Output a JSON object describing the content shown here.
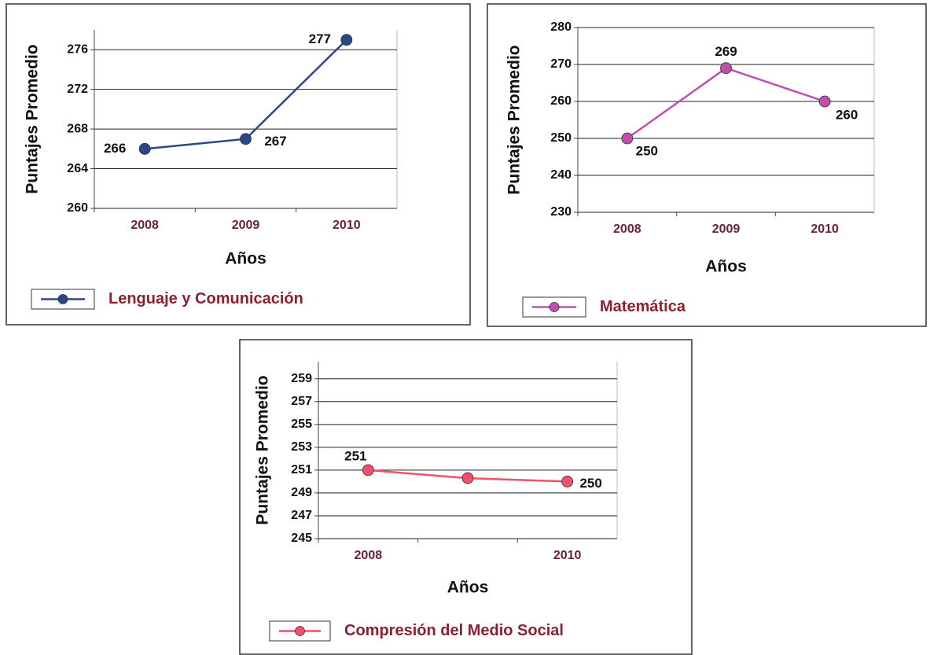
{
  "chart_data": [
    {
      "type": "line",
      "x_label": "Años",
      "y_label": "Puntajes Promedio",
      "categories": [
        "2008",
        "2009",
        "2010"
      ],
      "series": [
        {
          "name": "Lenguaje y Comunicación",
          "color": "#2b4787",
          "values": [
            266,
            267,
            277
          ]
        }
      ],
      "ylim": [
        260,
        278
      ],
      "yticks": [
        260,
        264,
        268,
        272,
        276
      ],
      "grid": true
    },
    {
      "type": "line",
      "x_label": "Años",
      "y_label": "Puntajes Promedio",
      "categories": [
        "2008",
        "2009",
        "2010"
      ],
      "series": [
        {
          "name": "Matemática",
          "color": "#c04fb0",
          "values": [
            250,
            269,
            260
          ]
        }
      ],
      "ylim": [
        230,
        280
      ],
      "yticks": [
        230,
        240,
        250,
        260,
        270,
        280
      ],
      "grid": true
    },
    {
      "type": "line",
      "x_label": "Años",
      "y_label": "Puntajes Promedio",
      "categories": [
        "2008",
        null,
        "2010"
      ],
      "series": [
        {
          "name": "Compresión del Medio Social",
          "color": "#f0506a",
          "values": [
            251,
            250.3,
            250
          ],
          "value_labels": [
            "251",
            null,
            "250"
          ]
        }
      ],
      "ylim": [
        245,
        260.5
      ],
      "yticks": [
        245,
        247,
        249,
        251,
        253,
        255,
        257,
        259
      ],
      "grid": true
    }
  ]
}
